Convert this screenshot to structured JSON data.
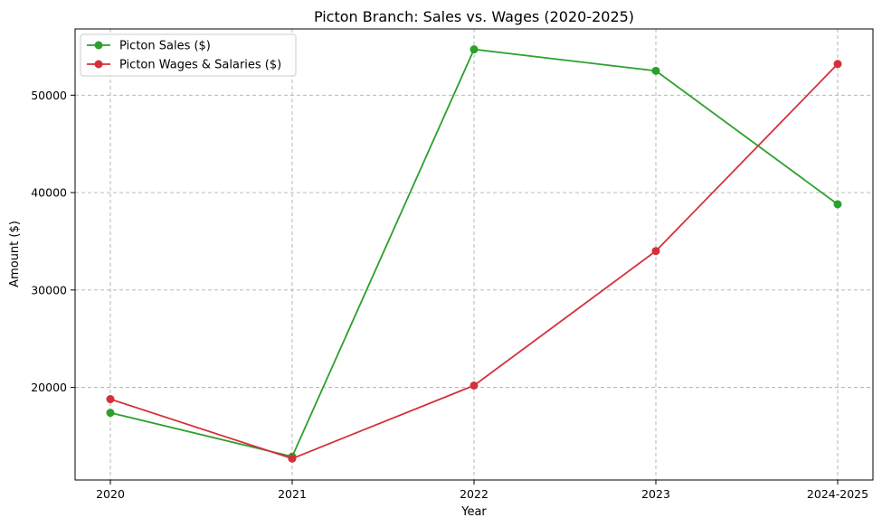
{
  "chart_data": {
    "type": "line",
    "title": "Picton Branch: Sales vs. Wages (2020-2025)",
    "xlabel": "Year",
    "ylabel": "Amount ($)",
    "categories": [
      "2020",
      "2021",
      "2022",
      "2023",
      "2024-2025"
    ],
    "yticks": [
      20000,
      30000,
      40000,
      50000
    ],
    "ylim": [
      10500,
      56800
    ],
    "grid": true,
    "legend_position": "top-left",
    "series": [
      {
        "name": "Picton Sales ($)",
        "color": "#2ca02c",
        "marker": "circle",
        "values": [
          17400,
          12900,
          54700,
          52500,
          38800
        ]
      },
      {
        "name": "Picton Wages & Salaries ($)",
        "color": "#d62f3c",
        "marker": "circle",
        "values": [
          18800,
          12700,
          20200,
          34000,
          53200
        ]
      }
    ]
  }
}
